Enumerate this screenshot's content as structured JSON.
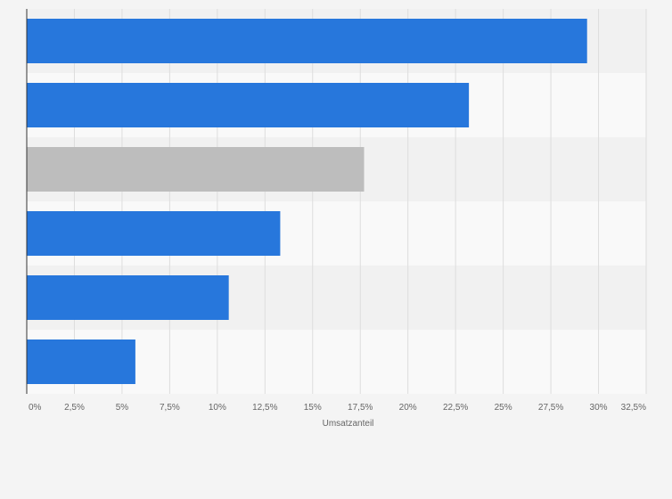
{
  "chart_data": {
    "type": "bar",
    "orientation": "horizontal",
    "categories": [
      "",
      "",
      "",
      "",
      "",
      ""
    ],
    "values": [
      29.4,
      23.2,
      17.7,
      13.3,
      10.6,
      5.7
    ],
    "bar_colors": [
      "#2777dc",
      "#2777dc",
      "#bdbdbd",
      "#2777dc",
      "#2777dc",
      "#2777dc"
    ],
    "title": "",
    "xlabel": "Umsatzanteil",
    "ylabel": "",
    "xlim": [
      0,
      32.5
    ],
    "x_ticks": [
      0,
      2.5,
      5,
      7.5,
      10,
      12.5,
      15,
      17.5,
      20,
      22.5,
      25,
      27.5,
      30,
      32.5
    ],
    "x_tick_labels": [
      "0%",
      "2,5%",
      "5%",
      "7,5%",
      "10%",
      "12,5%",
      "15%",
      "17,5%",
      "20%",
      "22,5%",
      "25%",
      "27,5%",
      "30%",
      "32,5%"
    ],
    "grid": true,
    "legend": "none"
  },
  "colors": {
    "background": "#f4f4f4",
    "band_light": "#f9f9f9",
    "band_dark": "#f1f1f1",
    "grid": "#dddddd",
    "axis": "#333333",
    "text": "#666666"
  }
}
